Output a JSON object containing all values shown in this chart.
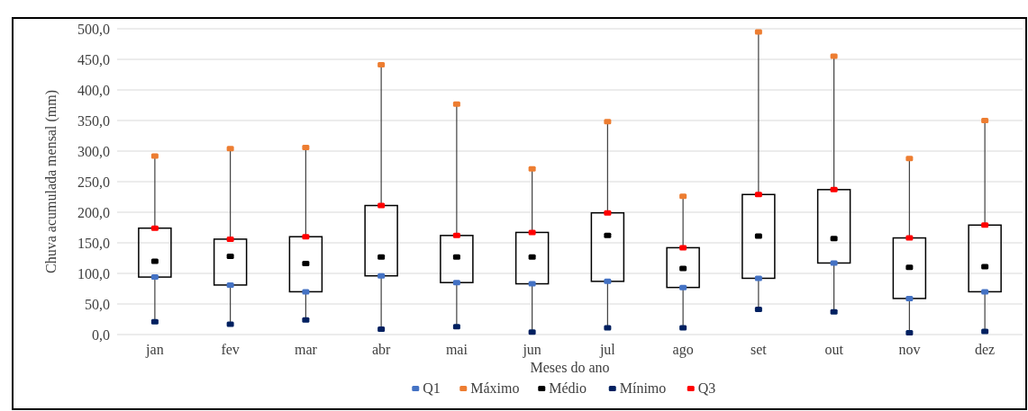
{
  "chart_data": {
    "type": "box",
    "xlabel": "Meses do ano",
    "ylabel": "Chuva acumulada mensal (mm)",
    "categories": [
      "jan",
      "fev",
      "mar",
      "abr",
      "mai",
      "jun",
      "jul",
      "ago",
      "set",
      "out",
      "nov",
      "dez"
    ],
    "boxes": [
      {
        "low": 21,
        "q1": 94,
        "q3": 174,
        "high": 292
      },
      {
        "low": 17,
        "q1": 81,
        "q3": 156,
        "high": 304
      },
      {
        "low": 24,
        "q1": 70,
        "q3": 160,
        "high": 306
      },
      {
        "low": 9,
        "q1": 96,
        "q3": 211,
        "high": 441
      },
      {
        "low": 13,
        "q1": 85,
        "q3": 162,
        "high": 377
      },
      {
        "low": 4,
        "q1": 83,
        "q3": 167,
        "high": 271
      },
      {
        "low": 11,
        "q1": 87,
        "q3": 199,
        "high": 348
      },
      {
        "low": 11,
        "q1": 77,
        "q3": 142,
        "high": 226
      },
      {
        "low": 41,
        "q1": 92,
        "q3": 229,
        "high": 495
      },
      {
        "low": 37,
        "q1": 117,
        "q3": 237,
        "high": 455
      },
      {
        "low": 3,
        "q1": 59,
        "q3": 158,
        "high": 288
      },
      {
        "low": 5,
        "q1": 70,
        "q3": 179,
        "high": 350
      }
    ],
    "series": [
      {
        "name": "Q1",
        "type": "scatter",
        "color": "#4472c4",
        "x": [
          "jan",
          "fev",
          "mar",
          "abr",
          "mai",
          "jun",
          "jul",
          "ago",
          "set",
          "out",
          "nov",
          "dez"
        ],
        "values": [
          94,
          81,
          70,
          96,
          85,
          83,
          87,
          77,
          92,
          117,
          59,
          70
        ]
      },
      {
        "name": "Máximo",
        "type": "scatter",
        "color": "#ed7d31",
        "x": [
          "jan",
          "fev",
          "mar",
          "abr",
          "mai",
          "jun",
          "jul",
          "ago",
          "set",
          "out",
          "nov",
          "dez"
        ],
        "values": [
          292,
          304,
          306,
          441,
          377,
          271,
          348,
          226,
          495,
          455,
          288,
          350
        ]
      },
      {
        "name": "Médio",
        "type": "scatter",
        "color": "#000000",
        "x": [
          "jan",
          "fev",
          "mar",
          "abr",
          "mai",
          "jun",
          "jul",
          "ago",
          "set",
          "out",
          "nov",
          "dez"
        ],
        "values": [
          120,
          128,
          116,
          127,
          127,
          127,
          162,
          108,
          161,
          157,
          110,
          111
        ]
      },
      {
        "name": "Mínimo",
        "type": "scatter",
        "color": "#002060",
        "x": [
          "jan",
          "fev",
          "mar",
          "abr",
          "mai",
          "jun",
          "jul",
          "ago",
          "set",
          "out",
          "nov",
          "dez"
        ],
        "values": [
          21,
          17,
          24,
          9,
          13,
          4,
          11,
          11,
          41,
          37,
          3,
          5
        ]
      },
      {
        "name": "Q3",
        "type": "scatter",
        "color": "#ff0000",
        "x": [
          "jan",
          "fev",
          "mar",
          "abr",
          "mai",
          "jun",
          "jul",
          "ago",
          "set",
          "out",
          "nov",
          "dez"
        ],
        "values": [
          174,
          156,
          160,
          211,
          162,
          167,
          199,
          142,
          229,
          237,
          158,
          179
        ]
      }
    ],
    "ylim": [
      0,
      500
    ],
    "yticks": [
      {
        "value": 0,
        "label": "0,0"
      },
      {
        "value": 50,
        "label": "50,0"
      },
      {
        "value": 100,
        "label": "100,0"
      },
      {
        "value": 150,
        "label": "150,0"
      },
      {
        "value": 200,
        "label": "200,0"
      },
      {
        "value": 250,
        "label": "250,0"
      },
      {
        "value": 300,
        "label": "300,0"
      },
      {
        "value": 350,
        "label": "350,0"
      },
      {
        "value": 400,
        "label": "400,0"
      },
      {
        "value": 450,
        "label": "450,0"
      },
      {
        "value": 500,
        "label": "500,0"
      }
    ],
    "grid": "y",
    "legend": "bottom",
    "marker": "square"
  }
}
